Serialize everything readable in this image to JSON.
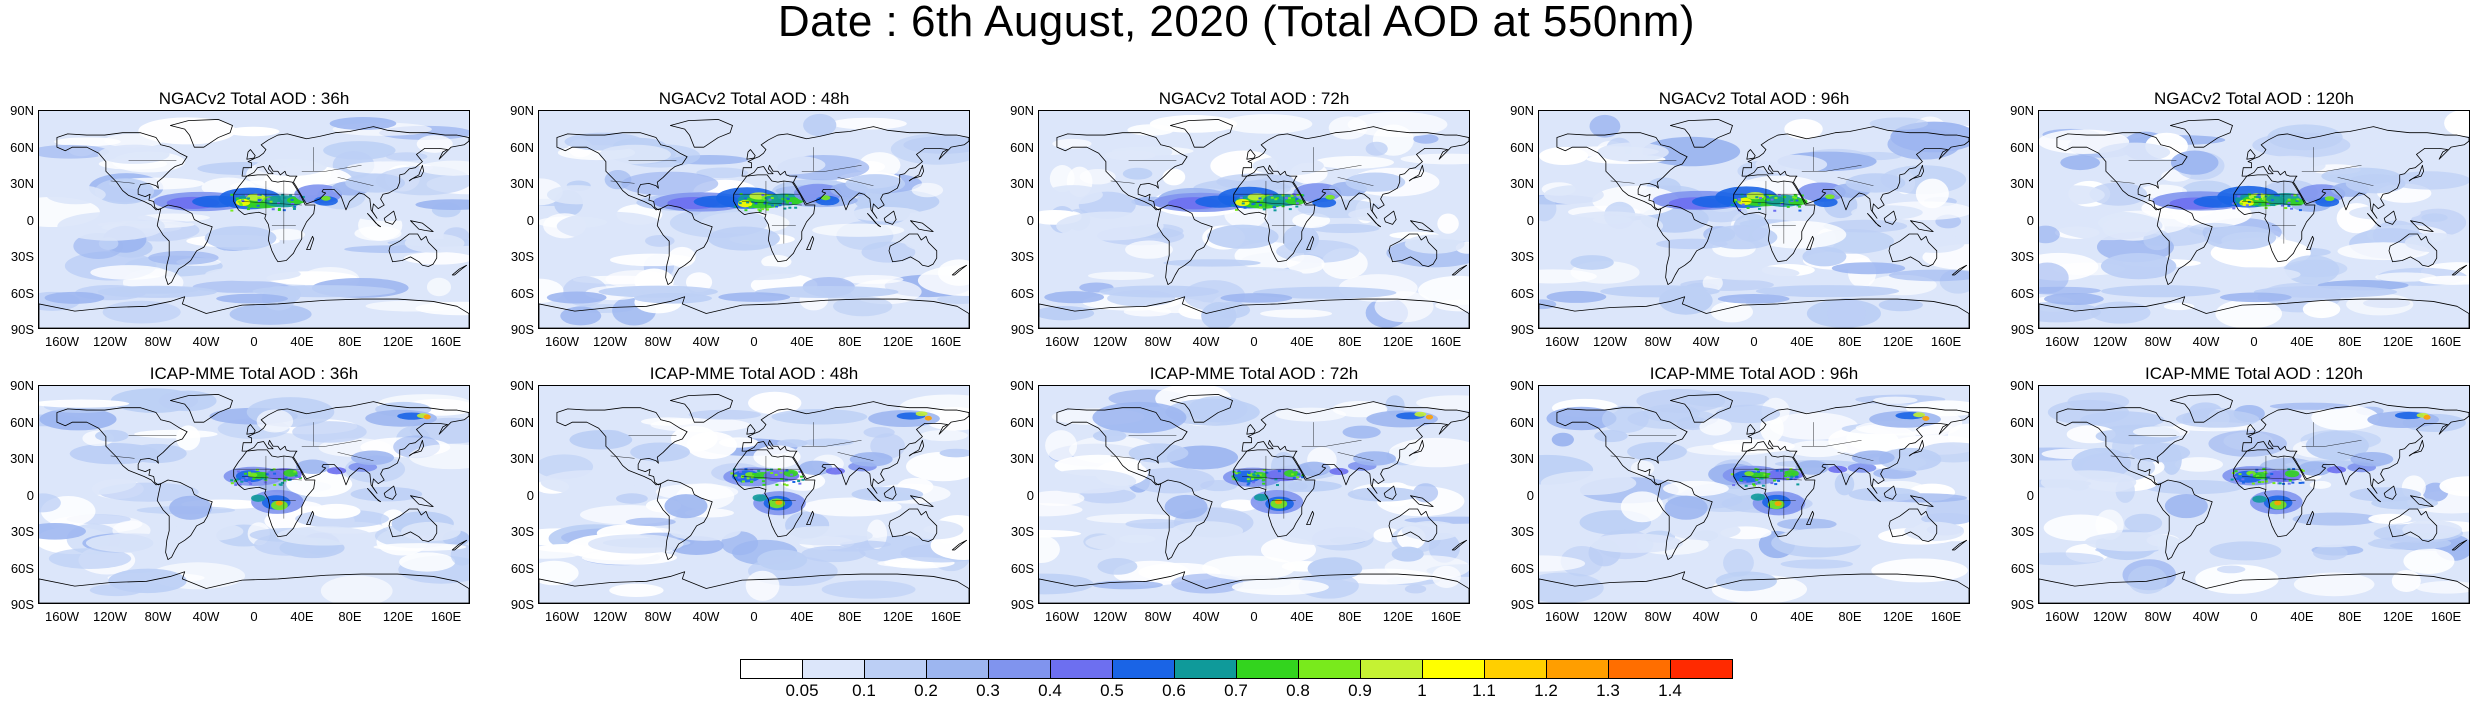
{
  "title": "Date : 6th August, 2020 (Total AOD at 550nm)",
  "panels": [
    {
      "title": "NGACv2 Total AOD : 36h",
      "model": "NGACv2",
      "lead": "36h"
    },
    {
      "title": "NGACv2 Total AOD : 48h",
      "model": "NGACv2",
      "lead": "48h"
    },
    {
      "title": "NGACv2 Total AOD : 72h",
      "model": "NGACv2",
      "lead": "72h"
    },
    {
      "title": "NGACv2 Total AOD : 96h",
      "model": "NGACv2",
      "lead": "96h"
    },
    {
      "title": "NGACv2 Total AOD : 120h",
      "model": "NGACv2",
      "lead": "120h"
    },
    {
      "title": "ICAP-MME Total AOD : 36h",
      "model": "ICAP-MME",
      "lead": "36h"
    },
    {
      "title": "ICAP-MME Total AOD : 48h",
      "model": "ICAP-MME",
      "lead": "48h"
    },
    {
      "title": "ICAP-MME Total AOD : 72h",
      "model": "ICAP-MME",
      "lead": "72h"
    },
    {
      "title": "ICAP-MME Total AOD : 96h",
      "model": "ICAP-MME",
      "lead": "96h"
    },
    {
      "title": "ICAP-MME Total AOD : 120h",
      "model": "ICAP-MME",
      "lead": "120h"
    }
  ],
  "lat_labels": [
    "90N",
    "60N",
    "30N",
    "0",
    "30S",
    "60S",
    "90S"
  ],
  "lon_labels": [
    "160W",
    "120W",
    "80W",
    "40W",
    "0",
    "40E",
    "80E",
    "120E",
    "160E"
  ],
  "colorbar": {
    "labels": [
      "0.05",
      "0.1",
      "0.2",
      "0.3",
      "0.4",
      "0.5",
      "0.6",
      "0.7",
      "0.8",
      "0.9",
      "1",
      "1.1",
      "1.2",
      "1.3",
      "1.4"
    ],
    "colors": [
      "#ffffff",
      "#dce6fa",
      "#bccff5",
      "#9db6f0",
      "#8094ee",
      "#6d6ff0",
      "#1a64e6",
      "#0f9a9a",
      "#33d41e",
      "#79ea1c",
      "#c5f233",
      "#ffff00",
      "#ffcf00",
      "#ff9e00",
      "#ff6e00",
      "#ff2a00"
    ]
  }
}
